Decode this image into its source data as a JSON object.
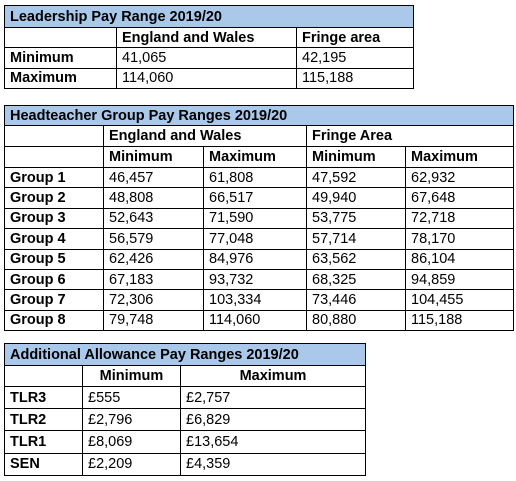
{
  "tables": [
    {
      "title": "Leadership Pay Range 2019/20",
      "header": [
        "England and Wales",
        "Fringe area"
      ],
      "rows": [
        [
          "Minimum",
          "41,065",
          "42,195"
        ],
        [
          "Maximum",
          "114,060",
          "115,188"
        ]
      ]
    },
    {
      "title": "Headteacher Group Pay Ranges 2019/20",
      "group_header": [
        "England and Wales",
        "Fringe Area"
      ],
      "header": [
        "Minimum",
        "Maximum",
        "Minimum",
        "Maximum"
      ],
      "rows": [
        [
          "Group 1",
          "46,457",
          "61,808",
          "47,592",
          "62,932"
        ],
        [
          "Group 2",
          "48,808",
          "66,517",
          "49,940",
          "67,648"
        ],
        [
          "Group 3",
          "52,643",
          "71,590",
          "53,775",
          "72,718"
        ],
        [
          "Group 4",
          "56,579",
          "77,048",
          "57,714",
          "78,170"
        ],
        [
          "Group 5",
          "62,426",
          "84,976",
          "63,562",
          "86,104"
        ],
        [
          "Group 6",
          "67,183",
          "93,732",
          "68,325",
          "94,859"
        ],
        [
          "Group 7",
          "72,306",
          "103,334",
          "73,446",
          "104,455"
        ],
        [
          "Group 8",
          "79,748",
          "114,060",
          "80,880",
          "115,188"
        ]
      ]
    },
    {
      "title": "Additional Allowance Pay Ranges 2019/20",
      "header": [
        "Minimum",
        "Maximum"
      ],
      "rows": [
        [
          "TLR3",
          "£555",
          "£2,757"
        ],
        [
          "TLR2",
          "£2,796",
          "£6,829"
        ],
        [
          "TLR1",
          "£8,069",
          "£13,654"
        ],
        [
          "SEN",
          "£2,209",
          "£4,359"
        ]
      ]
    }
  ]
}
